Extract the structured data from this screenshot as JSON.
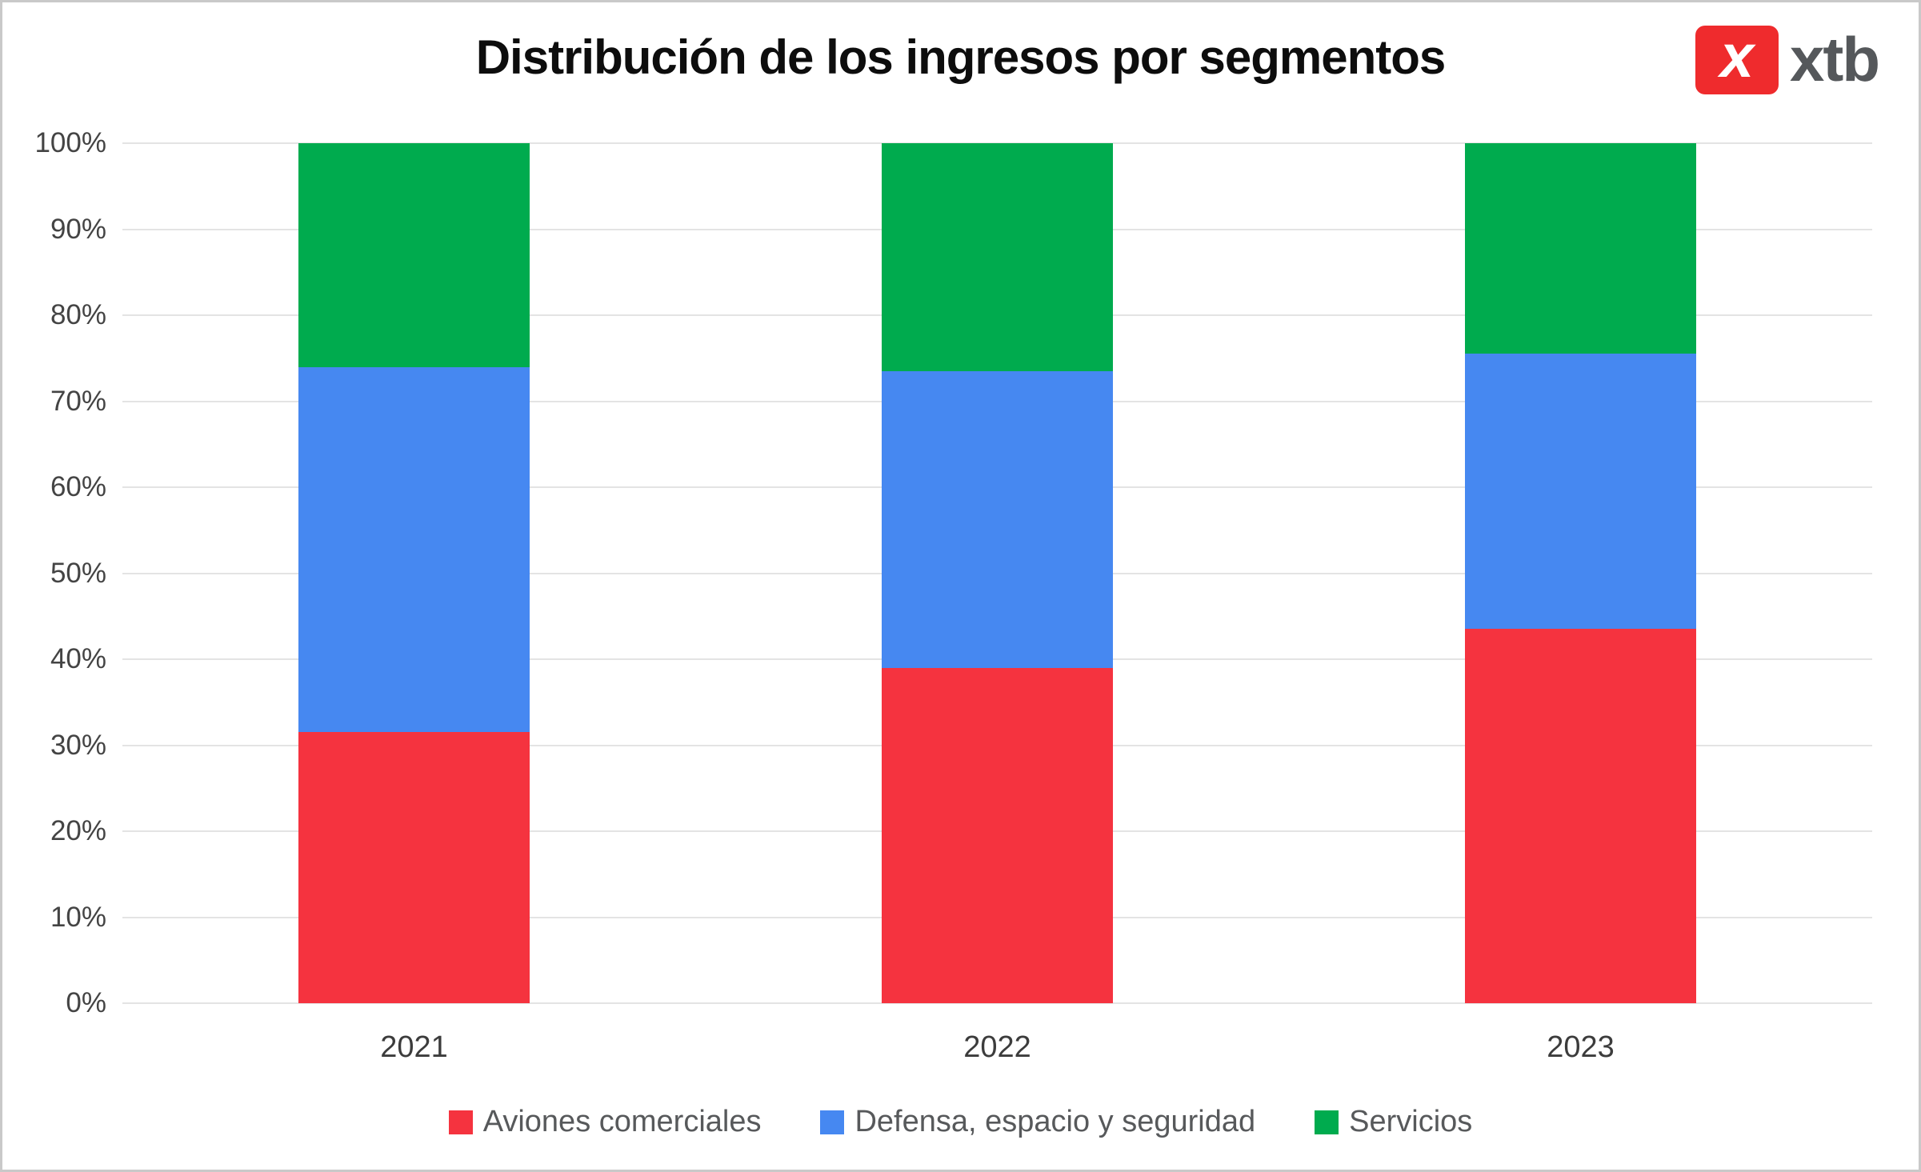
{
  "page": {
    "background": "#ffffff",
    "frame_color": "#c9c9c9"
  },
  "header": {
    "title": "Distribución de los ingresos por segmentos",
    "logo_symbol": "x",
    "logo_text": "xtb",
    "logo_red": "#ef2b2d",
    "logo_text_color": "#55585b"
  },
  "chart_data": {
    "type": "bar",
    "stacked": true,
    "title": "Distribución de los ingresos por segmentos",
    "xlabel": "",
    "ylabel": "",
    "categories": [
      "2021",
      "2022",
      "2023"
    ],
    "series": [
      {
        "name": "Aviones comerciales",
        "color": "#f5333f",
        "values": [
          31.5,
          39.0,
          43.5
        ]
      },
      {
        "name": "Defensa, espacio y seguridad",
        "color": "#4688f1",
        "values": [
          42.5,
          34.5,
          32.0
        ]
      },
      {
        "name": "Servicios",
        "color": "#00ab4e",
        "values": [
          26.0,
          26.5,
          24.5
        ]
      }
    ],
    "ylim": [
      0,
      100
    ],
    "ytick_step": 10,
    "ytick_suffix": "%",
    "grid": true,
    "gridline_color": "#e4e4e4",
    "legend_position": "bottom"
  }
}
